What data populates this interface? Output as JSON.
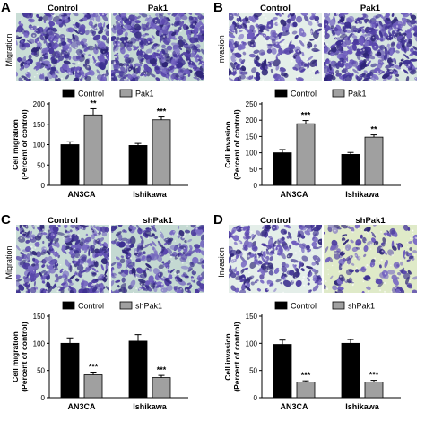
{
  "panels": [
    {
      "id": "A",
      "letter": "A",
      "row_label": "Migration",
      "image_titles": [
        "Control",
        "Pak1"
      ],
      "stain": "migration",
      "chart_data": {
        "type": "bar",
        "categories": [
          "AN3CA",
          "Ishikawa"
        ],
        "series": [
          {
            "name": "Control",
            "values": [
              100,
              98
            ],
            "errors": [
              7,
              5
            ],
            "color": "#000000"
          },
          {
            "name": "Pak1",
            "values": [
              173,
              161
            ],
            "errors": [
              15,
              7
            ],
            "color": "#a0a0a0"
          }
        ],
        "significance": [
          [
            "",
            "**"
          ],
          [
            "",
            "***"
          ]
        ],
        "ylabel": "Cell migration\n(Percent of control)",
        "ylim": [
          0,
          200
        ],
        "yticks": [
          0,
          50,
          100,
          150,
          200
        ],
        "legend": "top"
      }
    },
    {
      "id": "B",
      "letter": "B",
      "row_label": "Invasion",
      "image_titles": [
        "Control",
        "Pak1"
      ],
      "stain": "invasion",
      "chart_data": {
        "type": "bar",
        "categories": [
          "AN3CA",
          "Ishikawa"
        ],
        "series": [
          {
            "name": "Control",
            "values": [
              100,
              95
            ],
            "errors": [
              10,
              6
            ],
            "color": "#000000"
          },
          {
            "name": "Pak1",
            "values": [
              189,
              148
            ],
            "errors": [
              10,
              7
            ],
            "color": "#a0a0a0"
          }
        ],
        "significance": [
          [
            "",
            "***"
          ],
          [
            "",
            "**"
          ]
        ],
        "ylabel": "Cell invasion\n(Percent of control)",
        "ylim": [
          0,
          250
        ],
        "yticks": [
          0,
          50,
          100,
          150,
          200,
          250
        ],
        "legend": "top"
      }
    },
    {
      "id": "C",
      "letter": "C",
      "row_label": "Migration",
      "image_titles": [
        "Control",
        "shPak1"
      ],
      "stain": "migration",
      "chart_data": {
        "type": "bar",
        "categories": [
          "AN3CA",
          "Ishikawa"
        ],
        "series": [
          {
            "name": "Control",
            "values": [
              100,
              104
            ],
            "errors": [
              10,
              12
            ],
            "color": "#000000"
          },
          {
            "name": "shPak1",
            "values": [
              42,
              37
            ],
            "errors": [
              5,
              4
            ],
            "color": "#a0a0a0"
          }
        ],
        "significance": [
          [
            "",
            "***"
          ],
          [
            "",
            "***"
          ]
        ],
        "ylabel": "Cell migration\n(Percent of control)",
        "ylim": [
          0,
          150
        ],
        "yticks": [
          0,
          50,
          100,
          150
        ],
        "legend": "top"
      }
    },
    {
      "id": "D",
      "letter": "D",
      "row_label": "Invasion",
      "image_titles": [
        "Control",
        "shPak1"
      ],
      "stain": "invasion",
      "chart_data": {
        "type": "bar",
        "categories": [
          "AN3CA",
          "Ishikawa"
        ],
        "series": [
          {
            "name": "Control",
            "values": [
              98,
              100
            ],
            "errors": [
              8,
              7
            ],
            "color": "#000000"
          },
          {
            "name": "shPak1",
            "values": [
              29,
              29
            ],
            "errors": [
              2,
              3
            ],
            "color": "#a0a0a0"
          }
        ],
        "significance": [
          [
            "",
            "***"
          ],
          [
            "",
            "***"
          ]
        ],
        "ylabel": "Cell invasion\n(Percent of control)",
        "ylim": [
          0,
          150
        ],
        "yticks": [
          0,
          50,
          100,
          150
        ],
        "legend": "top"
      }
    }
  ]
}
